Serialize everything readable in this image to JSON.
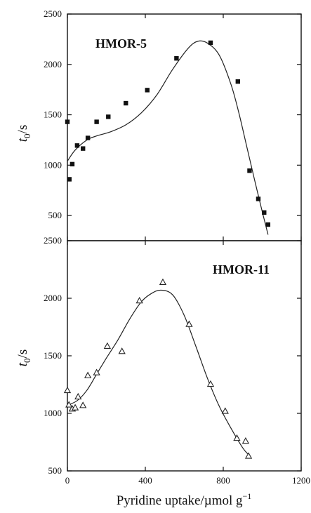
{
  "chart_data": [
    {
      "type": "scatter",
      "panel_label": "HMOR-5",
      "ylabel_base": "t",
      "ylabel_sub": "0",
      "ylabel_unit": "/s",
      "ylim": [
        250,
        2500
      ],
      "yticks": [
        500,
        1000,
        1500,
        2000,
        2500
      ],
      "xlim": [
        0,
        1200
      ],
      "marker": "filled-square",
      "points": {
        "x": [
          0,
          10,
          25,
          50,
          80,
          105,
          150,
          210,
          300,
          410,
          560,
          735,
          875,
          935,
          980,
          1010,
          1030
        ],
        "y": [
          1430,
          860,
          1010,
          1195,
          1165,
          1270,
          1430,
          1480,
          1615,
          1745,
          2060,
          2215,
          1830,
          945,
          665,
          530,
          410
        ]
      },
      "fit_curve": {
        "x": [
          0,
          40,
          100,
          150,
          220,
          300,
          380,
          460,
          540,
          620,
          670,
          720,
          780,
          840,
          880,
          920,
          960,
          1000,
          1030
        ],
        "y": [
          1040,
          1150,
          1250,
          1290,
          1330,
          1400,
          1520,
          1700,
          1950,
          2160,
          2230,
          2210,
          2090,
          1800,
          1520,
          1190,
          860,
          540,
          310
        ]
      }
    },
    {
      "type": "scatter",
      "panel_label": "HMOR-11",
      "ylabel_base": "t",
      "ylabel_sub": "0",
      "ylabel_unit": "/s",
      "ylim": [
        500,
        2500
      ],
      "yticks": [
        500,
        1000,
        1500,
        2000,
        2500
      ],
      "xlim": [
        0,
        1200
      ],
      "xticks": [
        0,
        400,
        800,
        1200
      ],
      "xlabel": "Pyridine uptake/µmol g",
      "xlabel_sup": "−1",
      "marker": "open-triangle",
      "points": {
        "x": [
          0,
          8,
          25,
          40,
          55,
          80,
          105,
          150,
          205,
          280,
          370,
          490,
          625,
          735,
          810,
          870,
          915,
          930
        ],
        "y": [
          1200,
          1075,
          1040,
          1050,
          1145,
          1070,
          1330,
          1355,
          1585,
          1540,
          1980,
          2140,
          1775,
          1255,
          1020,
          785,
          760,
          630
        ]
      },
      "fit_curve": {
        "x": [
          0,
          50,
          100,
          150,
          200,
          260,
          320,
          380,
          430,
          480,
          540,
          600,
          660,
          720,
          780,
          840,
          900,
          930
        ],
        "y": [
          1070,
          1110,
          1200,
          1340,
          1480,
          1640,
          1820,
          1970,
          2040,
          2070,
          2030,
          1850,
          1580,
          1300,
          1060,
          870,
          700,
          640
        ]
      }
    }
  ]
}
